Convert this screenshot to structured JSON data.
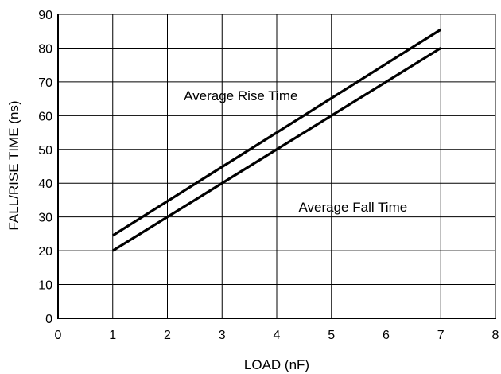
{
  "chart_data": {
    "type": "line",
    "xlabel": "LOAD (nF)",
    "ylabel": "FALL/RISE TIME (ns)",
    "xlim": [
      0,
      8
    ],
    "ylim": [
      0,
      90
    ],
    "x_ticks": [
      "0",
      "1",
      "2",
      "3",
      "4",
      "5",
      "6",
      "7",
      "8"
    ],
    "y_ticks": [
      "0",
      "10",
      "20",
      "30",
      "40",
      "50",
      "60",
      "70",
      "80",
      "90"
    ],
    "grid": true,
    "series": [
      {
        "name": "Average Rise Time",
        "x": [
          1,
          7
        ],
        "y": [
          24.5,
          85.5
        ]
      },
      {
        "name": "Average Fall Time",
        "x": [
          1,
          7
        ],
        "y": [
          20,
          80
        ]
      }
    ],
    "annotations": [
      {
        "text": "Average Rise Time",
        "x": 2.3,
        "y": 66
      },
      {
        "text": "Average Fall Time",
        "x": 4.4,
        "y": 33
      }
    ],
    "colors": {
      "line": "#000000",
      "grid": "#000000",
      "background": "#ffffff"
    }
  }
}
